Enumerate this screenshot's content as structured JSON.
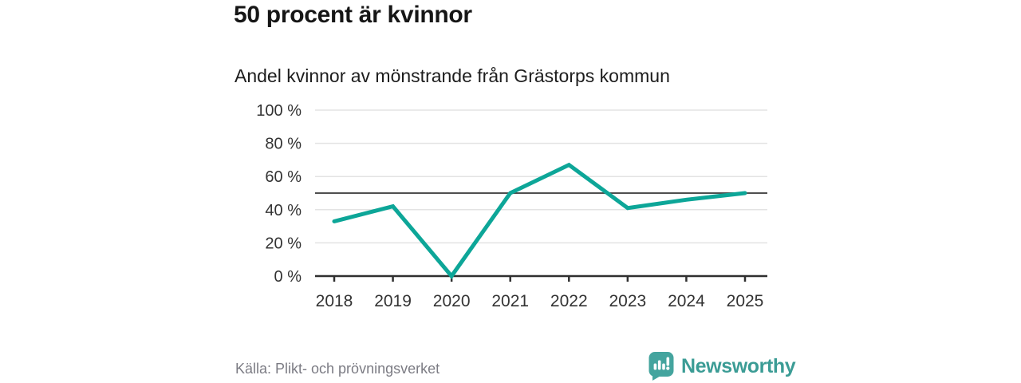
{
  "header": {
    "title": "50 procent är kvinnor",
    "subtitle": "Andel kvinnor av mönstrande från Grästorps kommun"
  },
  "chart_data": {
    "type": "line",
    "title": "50 procent är kvinnor",
    "subtitle": "Andel kvinnor av mönstrande från Grästorps kommun",
    "categories": [
      "2018",
      "2019",
      "2020",
      "2021",
      "2022",
      "2023",
      "2024",
      "2025"
    ],
    "values": [
      33,
      42,
      0,
      50,
      67,
      41,
      46,
      50
    ],
    "unit": "%",
    "xlabel": "",
    "ylabel": "",
    "ylim": [
      0,
      100
    ],
    "y_tick_values": [
      100,
      80,
      60,
      40,
      20,
      0
    ],
    "y_tick_labels": [
      "100 %",
      "80 %",
      "60 %",
      "40 %",
      "20 %",
      "0 %"
    ],
    "reference_line_value": 50,
    "grid": "horizontal gridlines on",
    "legend": "none"
  },
  "footer": {
    "source": "Källa: Plikt- och prövningsverket",
    "brand": "Newsworthy"
  },
  "icons": {
    "newsworthy_logo": "speech-bubble-with-bar-chart-and-exclamation-icon"
  },
  "colors": {
    "series_line": "#0da698",
    "reference_line": "#4f4f4f",
    "gridline": "#e3e3e3",
    "axis": "#2f2f2f",
    "tick_label": "#333333",
    "title_text": "#161616",
    "source_text": "#7c7c84",
    "brand_teal": "#3b9c95",
    "logo_bubble": "#44a49e",
    "background": "#ffffff"
  }
}
